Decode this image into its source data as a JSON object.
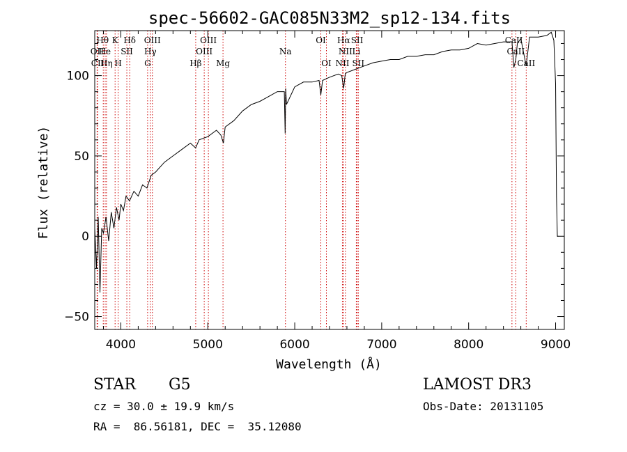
{
  "chart_data": {
    "type": "line",
    "title": "spec-56602-GAC085N33M2_sp12-134.fits",
    "xlabel": "Wavelength (Å)",
    "ylabel": "Flux (relative)",
    "xlim": [
      3700,
      9100
    ],
    "ylim": [
      -58,
      128
    ],
    "xticks": [
      4000,
      5000,
      6000,
      7000,
      8000,
      9000
    ],
    "xtick_labels": [
      "4000",
      "5000",
      "6000",
      "7000",
      "8000",
      "9000"
    ],
    "yticks": [
      -50,
      0,
      50,
      100
    ],
    "ytick_labels": [
      "−50",
      "0",
      "50",
      "100"
    ],
    "grid": false,
    "series": [
      {
        "name": "flux",
        "x": [
          3700,
          3720,
          3740,
          3760,
          3780,
          3800,
          3830,
          3860,
          3890,
          3920,
          3950,
          3980,
          4000,
          4030,
          4060,
          4100,
          4150,
          4200,
          4250,
          4300,
          4350,
          4400,
          4500,
          4600,
          4700,
          4800,
          4860,
          4900,
          5000,
          5100,
          5150,
          5180,
          5200,
          5300,
          5400,
          5500,
          5600,
          5700,
          5800,
          5880,
          5890,
          5896,
          5905,
          6000,
          6100,
          6200,
          6280,
          6300,
          6320,
          6400,
          6500,
          6540,
          6563,
          6580,
          6600,
          6700,
          6800,
          6900,
          7000,
          7100,
          7200,
          7300,
          7400,
          7500,
          7600,
          7700,
          7800,
          7900,
          8000,
          8100,
          8200,
          8300,
          8400,
          8498,
          8520,
          8542,
          8560,
          8600,
          8662,
          8700,
          8800,
          8900,
          8950,
          8980,
          9000,
          9010,
          9020,
          9030
        ],
        "values": [
          5,
          -20,
          12,
          -35,
          5,
          2,
          12,
          -3,
          15,
          5,
          18,
          10,
          20,
          16,
          25,
          22,
          28,
          25,
          32,
          30,
          38,
          40,
          46,
          50,
          54,
          58,
          55,
          60,
          62,
          66,
          63,
          58,
          68,
          72,
          78,
          82,
          84,
          87,
          90,
          90,
          64,
          92,
          82,
          93,
          96,
          96,
          97,
          88,
          97,
          99,
          101,
          100,
          92,
          101,
          102,
          104,
          106,
          108,
          109,
          110,
          110,
          112,
          112,
          113,
          113,
          115,
          116,
          116,
          117,
          120,
          119,
          120,
          121,
          121,
          105,
          110,
          120,
          123,
          106,
          124,
          124,
          125,
          127,
          122,
          95,
          25,
          0,
          0
        ]
      }
    ],
    "lines": [
      {
        "name": "Hθ",
        "x": 3798
      },
      {
        "name": "OII",
        "x": 3727
      },
      {
        "name": "CII",
        "x": 3733
      },
      {
        "name": "He",
        "x": 3820
      },
      {
        "name": "Hη",
        "x": 3835
      },
      {
        "name": "K",
        "x": 3934
      },
      {
        "name": "H",
        "x": 3969
      },
      {
        "name": "SII",
        "x": 4069
      },
      {
        "name": "Hδ",
        "x": 4102
      },
      {
        "name": "Hγ",
        "x": 4340
      },
      {
        "name": "OIII",
        "x": 4363
      },
      {
        "name": "G",
        "x": 4308
      },
      {
        "name": "Hβ",
        "x": 4861
      },
      {
        "name": "OIII",
        "x": 4959
      },
      {
        "name": "OIII",
        "x": 5007
      },
      {
        "name": "Mg",
        "x": 5175
      },
      {
        "name": "Na",
        "x": 5893
      },
      {
        "name": "OI",
        "x": 6300
      },
      {
        "name": "OI",
        "x": 6364
      },
      {
        "name": "NII",
        "x": 6548
      },
      {
        "name": "Hα",
        "x": 6563
      },
      {
        "name": "NII",
        "x": 6583
      },
      {
        "name": "Li",
        "x": 6708
      },
      {
        "name": "SII",
        "x": 6717
      },
      {
        "name": "SII",
        "x": 6731
      },
      {
        "name": "CaII",
        "x": 8498
      },
      {
        "name": "CaII",
        "x": 8542
      },
      {
        "name": "CaII",
        "x": 8662
      }
    ],
    "line_labels": [
      {
        "text": "Hθ",
        "x": 3790,
        "level": 1
      },
      {
        "text": "K",
        "x": 3934,
        "level": 1
      },
      {
        "text": "Hδ",
        "x": 4102,
        "level": 1
      },
      {
        "text": "OIII",
        "x": 4363,
        "level": 1
      },
      {
        "text": "OIII",
        "x": 5007,
        "level": 1
      },
      {
        "text": "OI",
        "x": 6300,
        "level": 1
      },
      {
        "text": "Hα",
        "x": 6563,
        "level": 1
      },
      {
        "text": "SII",
        "x": 6717,
        "level": 1
      },
      {
        "text": "CaII",
        "x": 8520,
        "level": 1
      },
      {
        "text": "OII",
        "x": 3727,
        "level": 2
      },
      {
        "text": "He",
        "x": 3815,
        "level": 2
      },
      {
        "text": "SII",
        "x": 4069,
        "level": 2
      },
      {
        "text": "Hγ",
        "x": 4340,
        "level": 2
      },
      {
        "text": "OIII",
        "x": 4959,
        "level": 2
      },
      {
        "text": "Na",
        "x": 5893,
        "level": 2
      },
      {
        "text": "NII",
        "x": 6583,
        "level": 2
      },
      {
        "text": "Li",
        "x": 6708,
        "level": 2
      },
      {
        "text": "CaII",
        "x": 8542,
        "level": 2
      },
      {
        "text": "CII",
        "x": 3733,
        "level": 3
      },
      {
        "text": "Hη",
        "x": 3835,
        "level": 3
      },
      {
        "text": "H",
        "x": 3969,
        "level": 3
      },
      {
        "text": "G",
        "x": 4308,
        "level": 3
      },
      {
        "text": "Hβ",
        "x": 4861,
        "level": 3
      },
      {
        "text": "Mg",
        "x": 5175,
        "level": 3
      },
      {
        "text": "OI",
        "x": 6364,
        "level": 3
      },
      {
        "text": "NII",
        "x": 6548,
        "level": 3
      },
      {
        "text": "SII",
        "x": 6731,
        "level": 3
      },
      {
        "text": "CaII",
        "x": 8662,
        "level": 3
      }
    ]
  },
  "info": {
    "object_class": "STAR",
    "subclass": "G5",
    "survey": "LAMOST DR3",
    "cz": "cz = 30.0 ± 19.9 km/s",
    "obs_date": "Obs-Date: 20131105",
    "coords": "RA =  86.56181, DEC =  35.12080"
  },
  "colors": {
    "spectrum": "#000000",
    "line_markers": "#cc0000",
    "axes": "#000000"
  }
}
